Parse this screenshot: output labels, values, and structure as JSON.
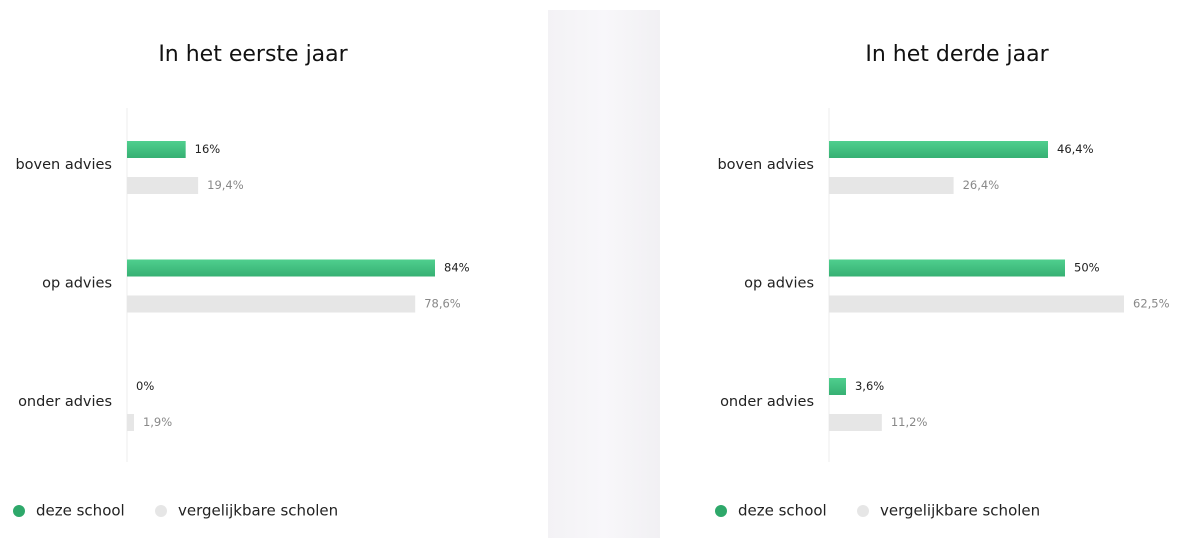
{
  "chart_data": [
    {
      "type": "bar",
      "orientation": "horizontal",
      "title": "In het eerste jaar",
      "categories": [
        "boven advies",
        "op advies",
        "onder advies"
      ],
      "series": [
        {
          "name": "deze school",
          "color": "#3dbd7d",
          "values": [
            16,
            84,
            0
          ],
          "value_labels": [
            "16%",
            "84%",
            "0%"
          ]
        },
        {
          "name": "vergelijkbare scholen",
          "color": "#e6e6e6",
          "values": [
            19.4,
            78.6,
            1.9
          ],
          "value_labels": [
            "19,4%",
            "78,6%",
            "1,9%"
          ]
        }
      ]
    },
    {
      "type": "bar",
      "orientation": "horizontal",
      "title": "In het derde jaar",
      "categories": [
        "boven advies",
        "op advies",
        "onder advies"
      ],
      "series": [
        {
          "name": "deze school",
          "color": "#3dbd7d",
          "values": [
            46.4,
            50,
            3.6
          ],
          "value_labels": [
            "46,4%",
            "50%",
            "3,6%"
          ]
        },
        {
          "name": "vergelijkbare scholen",
          "color": "#e6e6e6",
          "values": [
            26.4,
            62.5,
            11.2
          ],
          "value_labels": [
            "26,4%",
            "62,5%",
            "11,2%"
          ]
        }
      ]
    }
  ]
}
